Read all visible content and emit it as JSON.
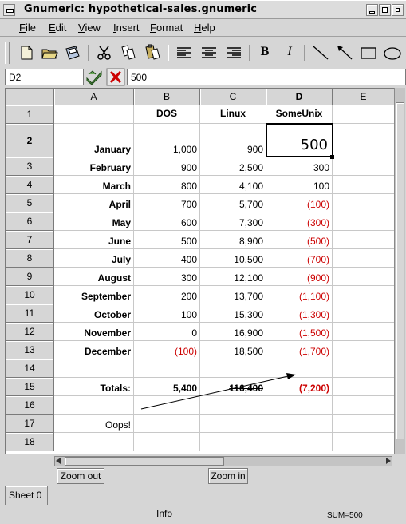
{
  "window": {
    "title": "Gnumeric: hypothetical-sales.gnumeric"
  },
  "menubar": {
    "items": [
      {
        "label": "File",
        "ul": "F",
        "rest": "ile"
      },
      {
        "label": "Edit",
        "ul": "E",
        "rest": "dit"
      },
      {
        "label": "View",
        "ul": "V",
        "rest": "iew"
      },
      {
        "label": "Insert",
        "ul": "I",
        "rest": "nsert"
      },
      {
        "label": "Format",
        "ul": "F",
        "rest": "ormat"
      },
      {
        "label": "Help",
        "ul": "H",
        "rest": "elp"
      }
    ]
  },
  "toolbar": {
    "buttons": [
      "new-file-icon",
      "open-folder-icon",
      "save-icon",
      "cut-icon",
      "copy-icon",
      "paste-icon",
      "align-left-icon",
      "align-center-icon",
      "align-right-icon",
      "bold-icon",
      "italic-icon",
      "line-icon",
      "arrow-icon",
      "rectangle-icon",
      "ellipse-icon"
    ],
    "bold_glyph": "B",
    "italic_glyph": "I"
  },
  "editline": {
    "cell_ref": "D2",
    "formula": "500"
  },
  "sheet": {
    "columns": [
      "A",
      "B",
      "C",
      "D",
      "E"
    ],
    "selected_column": "D",
    "selected_row": "2",
    "rows": [
      {
        "num": "1",
        "a": "",
        "b": "DOS",
        "c": "Linux",
        "d": "SomeUnix"
      },
      {
        "num": "2",
        "a": "January",
        "b": "1,000",
        "c": "900",
        "d": "500"
      },
      {
        "num": "3",
        "a": "February",
        "b": "900",
        "c": "2,500",
        "d": "300"
      },
      {
        "num": "4",
        "a": "March",
        "b": "800",
        "c": "4,100",
        "d": "100"
      },
      {
        "num": "5",
        "a": "April",
        "b": "700",
        "c": "5,700",
        "d": "(100)"
      },
      {
        "num": "6",
        "a": "May",
        "b": "600",
        "c": "7,300",
        "d": "(300)"
      },
      {
        "num": "7",
        "a": "June",
        "b": "500",
        "c": "8,900",
        "d": "(500)"
      },
      {
        "num": "8",
        "a": "July",
        "b": "400",
        "c": "10,500",
        "d": "(700)"
      },
      {
        "num": "9",
        "a": "August",
        "b": "300",
        "c": "12,100",
        "d": "(900)"
      },
      {
        "num": "10",
        "a": "September",
        "b": "200",
        "c": "13,700",
        "d": "(1,100)"
      },
      {
        "num": "11",
        "a": "October",
        "b": "100",
        "c": "15,300",
        "d": "(1,300)"
      },
      {
        "num": "12",
        "a": "November",
        "b": "0",
        "c": "16,900",
        "d": "(1,500)"
      },
      {
        "num": "13",
        "a": "December",
        "b": "(100)",
        "c": "18,500",
        "d": "(1,700)"
      },
      {
        "num": "14",
        "a": "",
        "b": "",
        "c": "",
        "d": ""
      },
      {
        "num": "15",
        "a": "Totals:",
        "b": "5,400",
        "c": "116,400",
        "d": "(7,200)"
      },
      {
        "num": "16",
        "a": "",
        "b": "",
        "c": "",
        "d": ""
      },
      {
        "num": "17",
        "a": "Oops!",
        "b": "",
        "c": "",
        "d": ""
      },
      {
        "num": "18",
        "a": "",
        "b": "",
        "c": "",
        "d": ""
      }
    ],
    "negative_color": "#cc0000"
  },
  "buttons": {
    "zoom_out": "Zoom out",
    "zoom_in": "Zoom in"
  },
  "tabs": {
    "sheet0": "Sheet 0"
  },
  "status": {
    "info": "Info",
    "sum": "SUM=500"
  }
}
